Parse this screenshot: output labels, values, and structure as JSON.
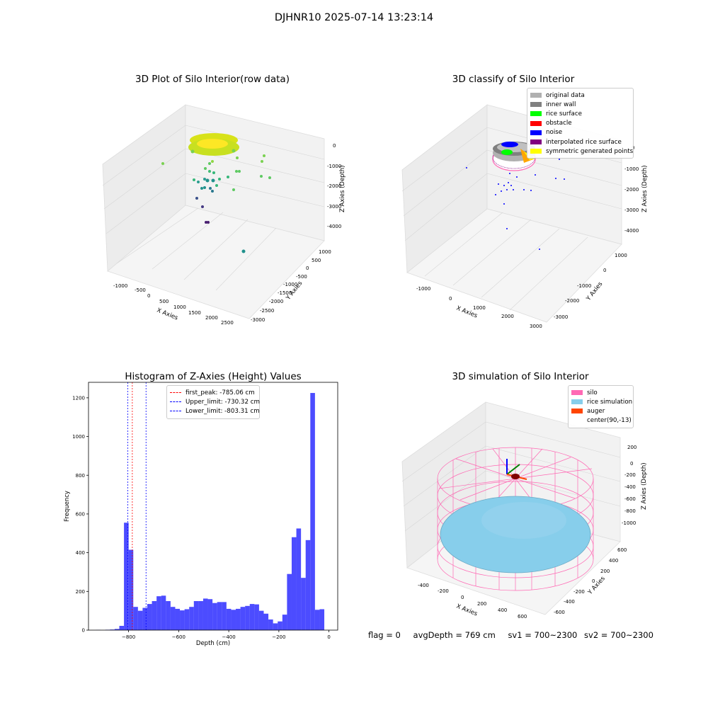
{
  "suptitle": "DJHNR10 2025-07-14 13:23:14",
  "chart_data": [
    {
      "type": "scatter",
      "title": "3D Plot of Silo Interior(row data)",
      "xlabel": "X Axies",
      "ylabel": "Y Axies",
      "zlabel": "Z Axies (Depth)",
      "x_ticks": [
        "-1000",
        "-500",
        "0",
        "500",
        "1000",
        "1500",
        "2000",
        "2500"
      ],
      "y_ticks": [
        "1000",
        "500",
        "0",
        "-500",
        "-1000",
        "-1500",
        "-2000",
        "-2500",
        "-3000"
      ],
      "z_ticks": [
        "0",
        "-1000",
        "-2000",
        "-3000",
        "-4000"
      ],
      "colormap": "viridis"
    },
    {
      "type": "scatter",
      "title": "3D classify of Silo Interior",
      "xlabel": "X Axies",
      "ylabel": "Y Axies",
      "zlabel": "Z Axies (Depth)",
      "x_ticks": [
        "-1000",
        "0",
        "1000",
        "2000",
        "3000"
      ],
      "y_ticks": [
        "1000",
        "0",
        "-1000",
        "-2000",
        "-3000"
      ],
      "z_ticks": [
        "0",
        "-1000",
        "-2000",
        "-3000",
        "-4000"
      ],
      "legend": [
        {
          "label": "original data",
          "color": "#b0b0b0"
        },
        {
          "label": "inner wall",
          "color": "#808080"
        },
        {
          "label": "rice surface",
          "color": "#00ff00"
        },
        {
          "label": "obstacle",
          "color": "#ff0000"
        },
        {
          "label": "noise",
          "color": "#0000ff"
        },
        {
          "label": "interpolated rice surface",
          "color": "#800080"
        },
        {
          "label": "symmetric generated points",
          "color": "#ffff00"
        }
      ]
    },
    {
      "type": "bar",
      "title": "Histogram of Z-Axies (Height) Values",
      "xlabel": "Depth (cm)",
      "ylabel": "Frequency",
      "xlim": [
        -960,
        35
      ],
      "ylim": [
        0,
        1280
      ],
      "x_ticks": [
        -800,
        -600,
        -400,
        -200,
        0
      ],
      "y_ticks": [
        0,
        200,
        400,
        600,
        800,
        1000,
        1200
      ],
      "bar_color": "#0000ff",
      "bin_start": -930,
      "bin_width": 18.6,
      "values": [
        1,
        0,
        2,
        3,
        6,
        22,
        555,
        415,
        120,
        100,
        115,
        135,
        150,
        175,
        178,
        150,
        120,
        110,
        102,
        108,
        120,
        150,
        150,
        163,
        160,
        140,
        145,
        145,
        110,
        105,
        110,
        120,
        125,
        135,
        133,
        100,
        85,
        55,
        35,
        45,
        80,
        290,
        480,
        525,
        270,
        465,
        1225,
        105,
        108
      ],
      "vlines": [
        {
          "x": -785.06,
          "color": "#ff0000",
          "label": "first_peak: -785.06 cm"
        },
        {
          "x": -730.32,
          "color": "#0000ff",
          "label": "Upper_limit: -730.32 cm"
        },
        {
          "x": -803.31,
          "color": "#0000ff",
          "label": "Lower_limit: -803.31 cm"
        }
      ]
    },
    {
      "type": "scatter",
      "title": "3D simulation of Silo Interior",
      "xlabel": "X Axies",
      "ylabel": "Y Axies",
      "zlabel": "Z Axies (Depth)",
      "x_ticks": [
        "-400",
        "-200",
        "0",
        "200",
        "400",
        "600"
      ],
      "y_ticks": [
        "600",
        "400",
        "200",
        "0",
        "-200",
        "-400",
        "-600"
      ],
      "z_ticks": [
        "200",
        "0",
        "-200",
        "-400",
        "-600",
        "-800",
        "-1000"
      ],
      "legend": [
        {
          "label": "silo",
          "color": "#ff69b4"
        },
        {
          "label": "rice simulation",
          "color": "#87ceeb"
        },
        {
          "label": "auger",
          "color": "#ff4500"
        },
        {
          "label": "center(90,-13)",
          "color": ""
        }
      ]
    }
  ],
  "footer": {
    "flag": "flag = 0",
    "avg": "avgDepth = 769 cm",
    "sv1": "sv1 = 700~2300",
    "sv2": "sv2 = 700~2300"
  }
}
